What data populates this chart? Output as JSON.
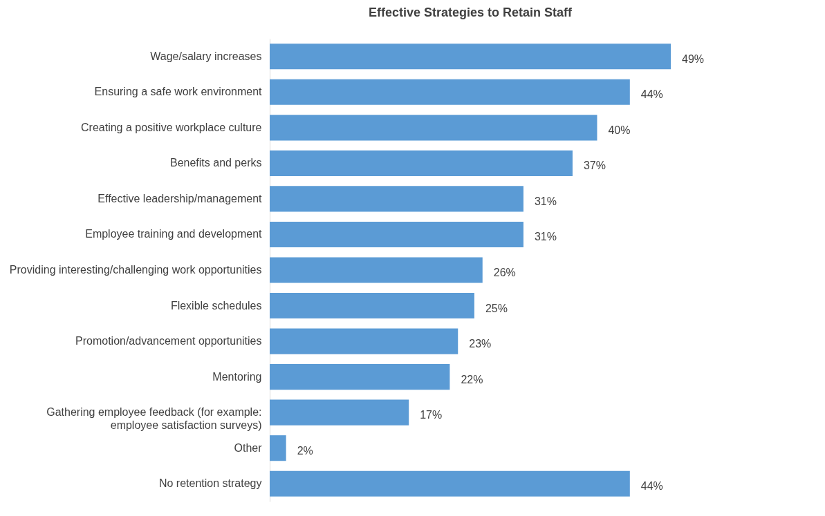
{
  "chart_data": {
    "type": "bar",
    "orientation": "horizontal",
    "title": "Effective Strategies to Retain Staff",
    "categories": [
      "Wage/salary increases",
      "Ensuring a safe work environment",
      "Creating a positive workplace culture",
      "Benefits and perks",
      "Effective leadership/management",
      "Employee training and development",
      "Providing interesting/challenging  work opportunities",
      "Flexible schedules",
      "Promotion/advancement opportunities",
      "Mentoring",
      "Gathering employee feedback (for example: employee satisfaction surveys)",
      "Other",
      "No retention strategy"
    ],
    "values": [
      49,
      44,
      40,
      37,
      31,
      31,
      26,
      25,
      23,
      22,
      17,
      2,
      44
    ],
    "value_labels": [
      "49%",
      "44%",
      "40%",
      "37%",
      "31%",
      "31%",
      "26%",
      "25%",
      "23%",
      "22%",
      "17%",
      "2%",
      "44%"
    ],
    "color": "#5b9bd5"
  }
}
